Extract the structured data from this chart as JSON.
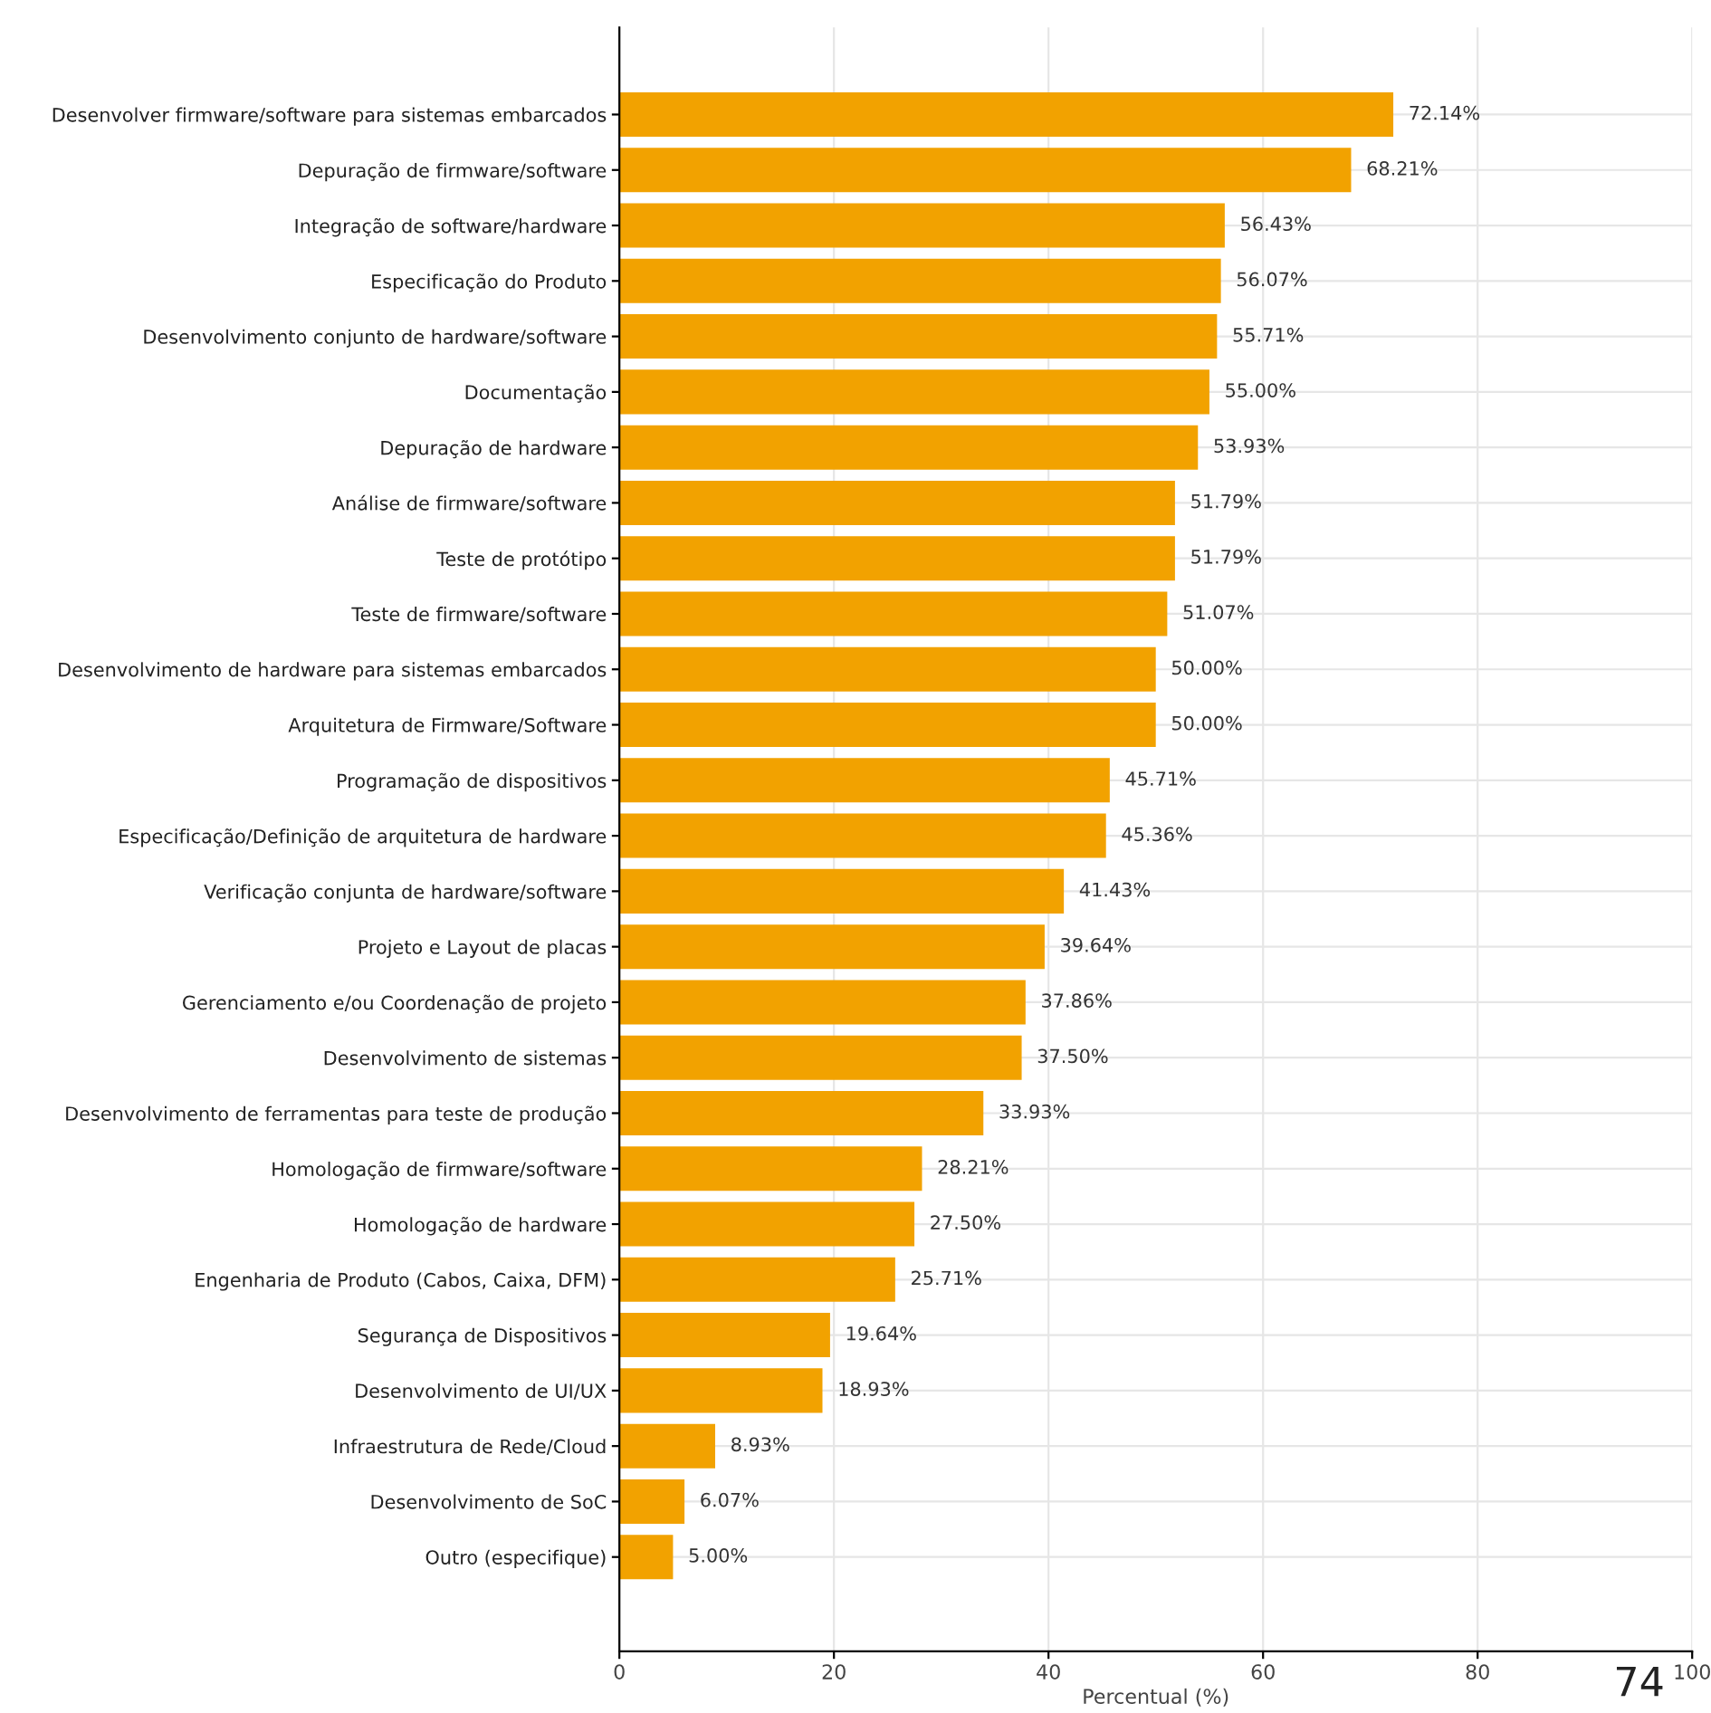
{
  "chart_data": {
    "type": "bar",
    "orientation": "horizontal",
    "xlabel": "Percentual (%)",
    "categories": [
      "Desenvolver firmware/software para sistemas embarcados",
      "Depuração de firmware/software",
      "Integração de software/hardware",
      "Especificação do Produto",
      "Desenvolvimento conjunto de hardware/software",
      "Documentação",
      "Depuração de hardware",
      "Análise de firmware/software",
      "Teste de protótipo",
      "Teste de firmware/software",
      "Desenvolvimento de hardware para sistemas embarcados",
      "Arquitetura de Firmware/Software",
      "Programação de dispositivos",
      "Especificação/Definição de arquitetura de hardware",
      "Verificação conjunta de hardware/software",
      "Projeto e Layout de placas",
      "Gerenciamento e/ou Coordenação de projeto",
      "Desenvolvimento de sistemas",
      "Desenvolvimento de ferramentas para teste de produção",
      "Homologação de firmware/software",
      "Homologação de hardware",
      "Engenharia de Produto (Cabos, Caixa, DFM)",
      "Segurança de Dispositivos",
      "Desenvolvimento de UI/UX",
      "Infraestrutura de Rede/Cloud",
      "Desenvolvimento de SoC",
      "Outro (especifique)"
    ],
    "values": [
      72.14,
      68.21,
      56.43,
      56.07,
      55.71,
      55.0,
      53.93,
      51.79,
      51.79,
      51.07,
      50.0,
      50.0,
      45.71,
      45.36,
      41.43,
      39.64,
      37.86,
      37.5,
      33.93,
      28.21,
      27.5,
      25.71,
      19.64,
      18.93,
      8.93,
      6.07,
      5.0
    ],
    "value_labels": [
      "72.14%",
      "68.21%",
      "56.43%",
      "56.07%",
      "55.71%",
      "55.00%",
      "53.93%",
      "51.79%",
      "51.79%",
      "51.07%",
      "50.00%",
      "50.00%",
      "45.71%",
      "45.36%",
      "41.43%",
      "39.64%",
      "37.86%",
      "37.50%",
      "33.93%",
      "28.21%",
      "27.50%",
      "25.71%",
      "19.64%",
      "18.93%",
      "8.93%",
      "6.07%",
      "5.00%"
    ],
    "color": "#f2a200",
    "xlim": [
      0,
      100
    ],
    "xticks": [
      0,
      20,
      40,
      60,
      80,
      100
    ],
    "grid": true,
    "annotations": [
      "74"
    ]
  }
}
